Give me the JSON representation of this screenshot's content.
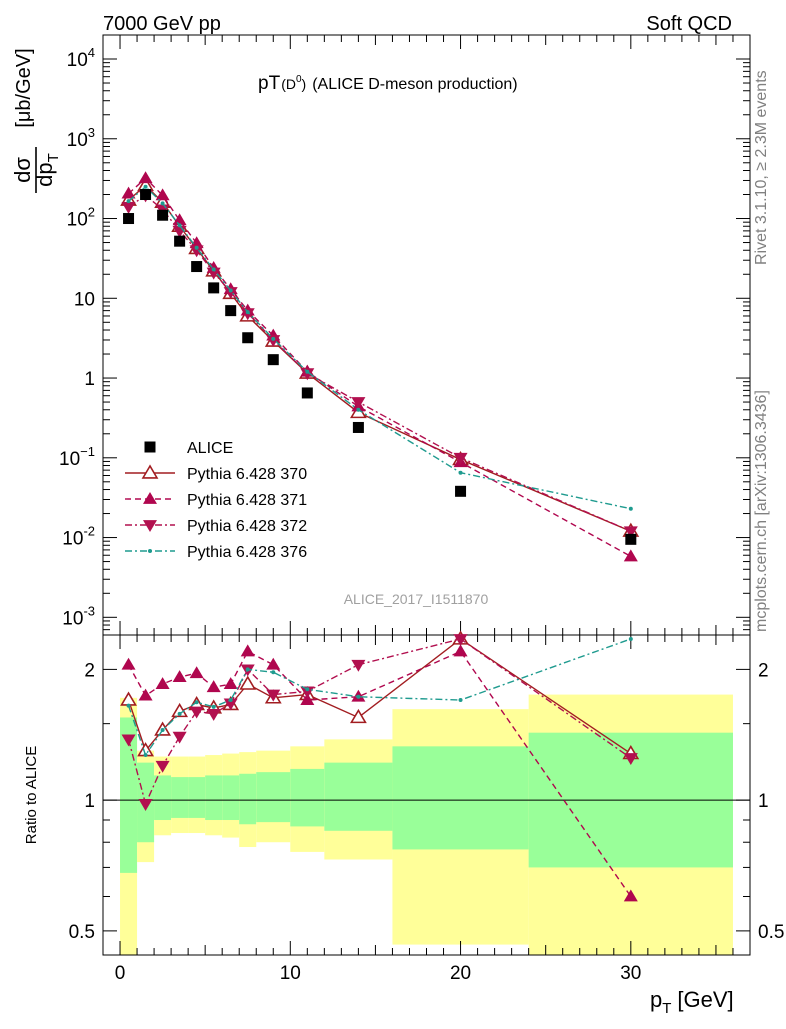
{
  "header": {
    "left": "7000 GeV pp",
    "right": "Soft QCD"
  },
  "side_labels": {
    "rivet": "Rivet 3.1.10, ≥ 2.3M events",
    "site": "mcplots.cern.ch [arXiv:1306.3436]"
  },
  "chart_data": [
    {
      "type": "scatter",
      "panel": "main",
      "title_main": "pT",
      "title_sub": "(D",
      "title_sup": "0",
      "title_close": ")",
      "title_rest": "(ALICE D-meson production)",
      "analysis_id": "ALICE_2017_I1511870",
      "ylabel_num": "dσ",
      "ylabel_den": "dp",
      "ylabel_den_sub": "T",
      "ylabel_unit": "[μb/GeV]",
      "yscale": "log",
      "ylim": [
        0.0006,
        20000
      ],
      "xlim": [
        -1,
        37
      ],
      "y_ticks": [
        {
          "base": "10",
          "exp": "-3",
          "value": 0.001
        },
        {
          "base": "10",
          "exp": "-2",
          "value": 0.01
        },
        {
          "base": "10",
          "exp": "−1",
          "value": 0.1
        },
        {
          "base": "1",
          "exp": "",
          "value": 1
        },
        {
          "base": "10",
          "exp": "",
          "value": 10
        },
        {
          "base": "10",
          "exp": "2",
          "value": 100
        },
        {
          "base": "10",
          "exp": "3",
          "value": 1000
        },
        {
          "base": "10",
          "exp": "4",
          "value": 10000
        }
      ],
      "legend_position": "bottom-left",
      "x": [
        0.5,
        1.5,
        2.5,
        3.5,
        4.5,
        5.5,
        6.5,
        7.5,
        9,
        11,
        14,
        20,
        30
      ],
      "series": [
        {
          "name": "ALICE",
          "marker": "square",
          "color": "#000000",
          "line": "none",
          "values": [
            100,
            200,
            110,
            52,
            25,
            13.5,
            7,
            3.2,
            1.7,
            0.65,
            0.24,
            0.038,
            0.0095
          ]
        },
        {
          "name": "Pythia 6.428 370",
          "marker": "triangle-up-open",
          "color": "#a21d21",
          "line": "solid",
          "values": [
            170,
            260,
            160,
            80,
            42,
            22,
            11.5,
            6,
            2.9,
            1.15,
            0.37,
            0.095,
            0.012
          ]
        },
        {
          "name": "Pythia 6.428 371",
          "marker": "triangle-up",
          "color": "#b0064e",
          "line": "dashed",
          "values": [
            205,
            320,
            195,
            95,
            49,
            24,
            13,
            7,
            3.4,
            1.2,
            0.44,
            0.088,
            0.0058
          ]
        },
        {
          "name": "Pythia 6.428 372",
          "marker": "triangle-down",
          "color": "#b2104f",
          "line": "dashdot",
          "values": [
            140,
            195,
            130,
            70,
            40,
            21,
            12,
            6.5,
            3,
            1.15,
            0.5,
            0.1,
            0.012
          ]
        },
        {
          "name": "Pythia 6.428 376",
          "marker": "dot",
          "color": "#1f9b8f",
          "line": "dashdot",
          "values": [
            165,
            250,
            155,
            82,
            43,
            23,
            12.5,
            6.7,
            3.1,
            1.2,
            0.4,
            0.065,
            0.023
          ]
        }
      ]
    },
    {
      "type": "scatter",
      "panel": "ratio",
      "ylabel": "Ratio to ALICE",
      "xlabel_main": "p",
      "xlabel_sub": "T",
      "xlabel_unit": "[GeV]",
      "yscale": "log",
      "ylim": [
        0.44,
        2.4
      ],
      "y_ticks": [
        {
          "label": "0.5",
          "value": 0.5
        },
        {
          "label": "1",
          "value": 1
        },
        {
          "label": "2",
          "value": 2
        }
      ],
      "x_ticks": [
        {
          "label": "0",
          "value": 0
        },
        {
          "label": "10",
          "value": 10
        },
        {
          "label": "20",
          "value": 20
        },
        {
          "label": "30",
          "value": 30
        }
      ],
      "bands": [
        {
          "x0": 0,
          "x1": 1,
          "y_lo": 0.44,
          "y_hi": 1.72,
          "g_lo": 0.68,
          "g_hi": 1.55
        },
        {
          "x0": 1,
          "x1": 2,
          "y_lo": 0.72,
          "y_hi": 1.3,
          "g_lo": 0.8,
          "g_hi": 1.22
        },
        {
          "x0": 2,
          "x1": 3,
          "y_lo": 0.83,
          "y_hi": 1.26,
          "g_lo": 0.9,
          "g_hi": 1.14
        },
        {
          "x0": 3,
          "x1": 4,
          "y_lo": 0.84,
          "y_hi": 1.26,
          "g_lo": 0.91,
          "g_hi": 1.13
        },
        {
          "x0": 4,
          "x1": 5,
          "y_lo": 0.84,
          "y_hi": 1.26,
          "g_lo": 0.91,
          "g_hi": 1.13
        },
        {
          "x0": 5,
          "x1": 6,
          "y_lo": 0.83,
          "y_hi": 1.27,
          "g_lo": 0.9,
          "g_hi": 1.14
        },
        {
          "x0": 6,
          "x1": 7,
          "y_lo": 0.82,
          "y_hi": 1.28,
          "g_lo": 0.9,
          "g_hi": 1.14
        },
        {
          "x0": 7,
          "x1": 8,
          "y_lo": 0.78,
          "y_hi": 1.29,
          "g_lo": 0.88,
          "g_hi": 1.15
        },
        {
          "x0": 8,
          "x1": 10,
          "y_lo": 0.8,
          "y_hi": 1.3,
          "g_lo": 0.89,
          "g_hi": 1.16
        },
        {
          "x0": 10,
          "x1": 12,
          "y_lo": 0.76,
          "y_hi": 1.33,
          "g_lo": 0.87,
          "g_hi": 1.18
        },
        {
          "x0": 12,
          "x1": 16,
          "y_lo": 0.73,
          "y_hi": 1.38,
          "g_lo": 0.85,
          "g_hi": 1.22
        },
        {
          "x0": 16,
          "x1": 24,
          "y_lo": 0.465,
          "y_hi": 1.62,
          "g_lo": 0.77,
          "g_hi": 1.33
        },
        {
          "x0": 24,
          "x1": 36,
          "y_lo": 0.44,
          "y_hi": 1.75,
          "g_lo": 0.7,
          "g_hi": 1.43
        }
      ],
      "band_colors": {
        "outer": "#ffff99",
        "inner": "#99ff99"
      },
      "series": [
        {
          "name": "Pythia 6.428 370",
          "color": "#a21d21",
          "values": [
            1.7,
            1.3,
            1.45,
            1.6,
            1.66,
            1.63,
            1.66,
            1.85,
            1.72,
            1.75,
            1.55,
            2.35,
            1.28
          ]
        },
        {
          "name": "Pythia 6.428 371",
          "color": "#b0064e",
          "values": [
            2.05,
            1.74,
            1.85,
            1.92,
            1.96,
            1.82,
            1.85,
            2.2,
            2.05,
            1.7,
            1.73,
            2.2,
            0.6
          ]
        },
        {
          "name": "Pythia 6.428 372",
          "color": "#b2104f",
          "values": [
            1.38,
            0.98,
            1.2,
            1.4,
            1.6,
            1.58,
            1.67,
            2.0,
            1.75,
            1.78,
            2.05,
            2.35,
            1.25
          ]
        },
        {
          "name": "Pythia 6.428 376",
          "color": "#1f9b8f",
          "values": [
            1.65,
            1.27,
            1.45,
            1.58,
            1.68,
            1.64,
            1.7,
            2.0,
            1.97,
            1.8,
            1.73,
            1.7,
            2.35
          ]
        }
      ]
    }
  ]
}
